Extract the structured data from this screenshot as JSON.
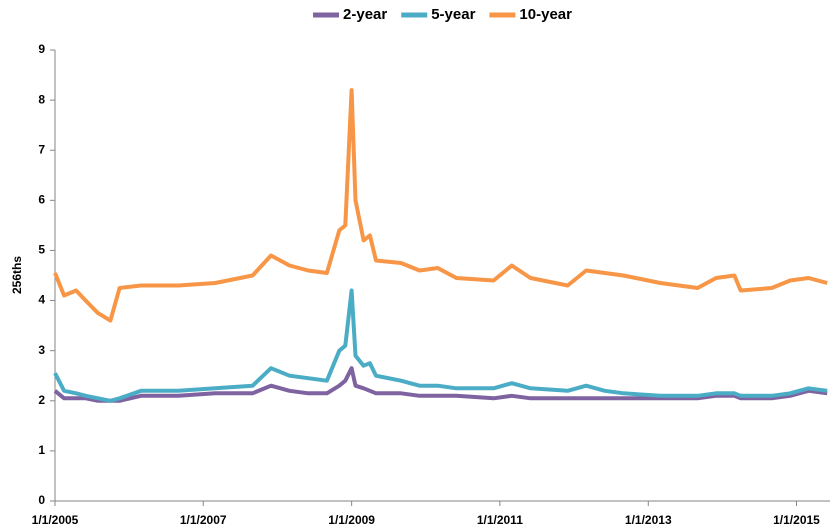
{
  "chart_data": {
    "type": "line",
    "y_label": "256ths",
    "x": [
      "1/1/2005",
      "2/15/2005",
      "4/15/2005",
      "6/1/2005",
      "8/1/2005",
      "10/1/2005",
      "11/15/2005",
      "3/1/2006",
      "9/1/2006",
      "3/1/2007",
      "9/1/2007",
      "12/1/2007",
      "3/1/2008",
      "6/1/2008",
      "9/1/2008",
      "11/1/2008",
      "12/1/2008",
      "1/1/2009",
      "1/20/2009",
      "3/1/2009",
      "4/1/2009",
      "5/1/2009",
      "9/1/2009",
      "12/1/2009",
      "3/1/2010",
      "6/1/2010",
      "12/1/2010",
      "3/1/2011",
      "6/1/2011",
      "12/1/2011",
      "3/1/2012",
      "6/1/2012",
      "9/1/2012",
      "3/1/2013",
      "9/1/2013",
      "12/1/2013",
      "3/1/2014",
      "4/1/2014",
      "9/1/2014",
      "12/1/2014",
      "3/1/2015",
      "6/1/2015"
    ],
    "series": [
      {
        "name": "2-year",
        "color": "#7f62a0",
        "values": [
          2.2,
          2.05,
          2.05,
          2.05,
          2.0,
          2.0,
          2.0,
          2.1,
          2.1,
          2.15,
          2.15,
          2.3,
          2.2,
          2.15,
          2.15,
          2.3,
          2.4,
          2.65,
          2.3,
          2.25,
          2.2,
          2.15,
          2.15,
          2.1,
          2.1,
          2.1,
          2.05,
          2.1,
          2.05,
          2.05,
          2.05,
          2.05,
          2.05,
          2.05,
          2.05,
          2.1,
          2.1,
          2.05,
          2.05,
          2.1,
          2.2,
          2.15
        ]
      },
      {
        "name": "5-year",
        "color": "#4bacc6",
        "values": [
          2.55,
          2.2,
          2.15,
          2.1,
          2.05,
          2.0,
          2.05,
          2.2,
          2.2,
          2.25,
          2.3,
          2.65,
          2.5,
          2.45,
          2.4,
          3.0,
          3.1,
          4.2,
          2.9,
          2.7,
          2.75,
          2.5,
          2.4,
          2.3,
          2.3,
          2.25,
          2.25,
          2.35,
          2.25,
          2.2,
          2.3,
          2.2,
          2.15,
          2.1,
          2.1,
          2.15,
          2.15,
          2.1,
          2.1,
          2.15,
          2.25,
          2.2
        ]
      },
      {
        "name": "10-year",
        "color": "#f79646",
        "values": [
          4.55,
          4.1,
          4.2,
          4.0,
          3.75,
          3.6,
          4.25,
          4.3,
          4.3,
          4.35,
          4.5,
          4.9,
          4.7,
          4.6,
          4.55,
          5.4,
          5.5,
          8.2,
          6.0,
          5.2,
          5.3,
          4.8,
          4.75,
          4.6,
          4.65,
          4.45,
          4.4,
          4.7,
          4.45,
          4.3,
          4.6,
          4.55,
          4.5,
          4.35,
          4.25,
          4.45,
          4.5,
          4.2,
          4.25,
          4.4,
          4.45,
          4.35
        ]
      }
    ],
    "xlim": [
      "1/1/2005",
      "6/15/2015"
    ],
    "xticks": [
      "1/1/2005",
      "1/1/2007",
      "1/1/2009",
      "1/1/2011",
      "1/1/2013",
      "1/1/2015"
    ],
    "ylim": [
      0,
      9
    ],
    "yticks": [
      0,
      1,
      2,
      3,
      4,
      5,
      6,
      7,
      8,
      9
    ],
    "legend": "top"
  }
}
